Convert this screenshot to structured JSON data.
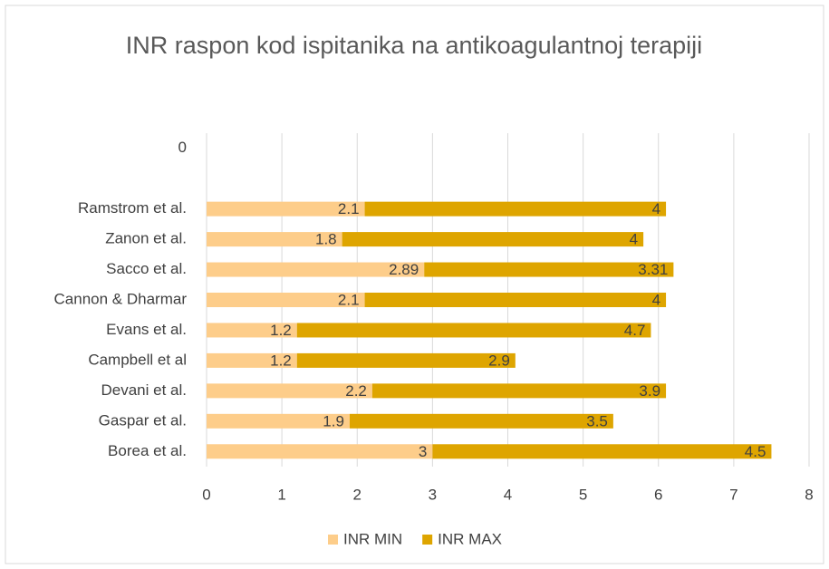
{
  "chart_data": {
    "type": "bar",
    "orientation": "horizontal",
    "stacked": true,
    "title": "INR raspon kod ispitanika na antikoagulantnoj terapiji",
    "categories": [
      "0",
      null,
      "Ramstrom et al.",
      "Zanon et al.",
      "Sacco et al.",
      "Cannon & Dharmar",
      "Evans et al.",
      "Campbell et al",
      "Devani et al.",
      "Gaspar et al.",
      "Borea et al."
    ],
    "series": [
      {
        "name": "INR MIN",
        "color": "#fdcd8a",
        "values": [
          null,
          null,
          2.1,
          1.8,
          2.89,
          2.1,
          1.2,
          1.2,
          2.2,
          1.9,
          3
        ]
      },
      {
        "name": "INR MAX",
        "color": "#dea500",
        "values": [
          null,
          null,
          4,
          4,
          3.31,
          4,
          4.7,
          2.9,
          3.9,
          3.5,
          4.5
        ]
      }
    ],
    "xlim": [
      0,
      8
    ],
    "xticks": [
      0,
      1,
      2,
      3,
      4,
      5,
      6,
      7,
      8
    ],
    "grid": true,
    "legend": "bottom"
  }
}
